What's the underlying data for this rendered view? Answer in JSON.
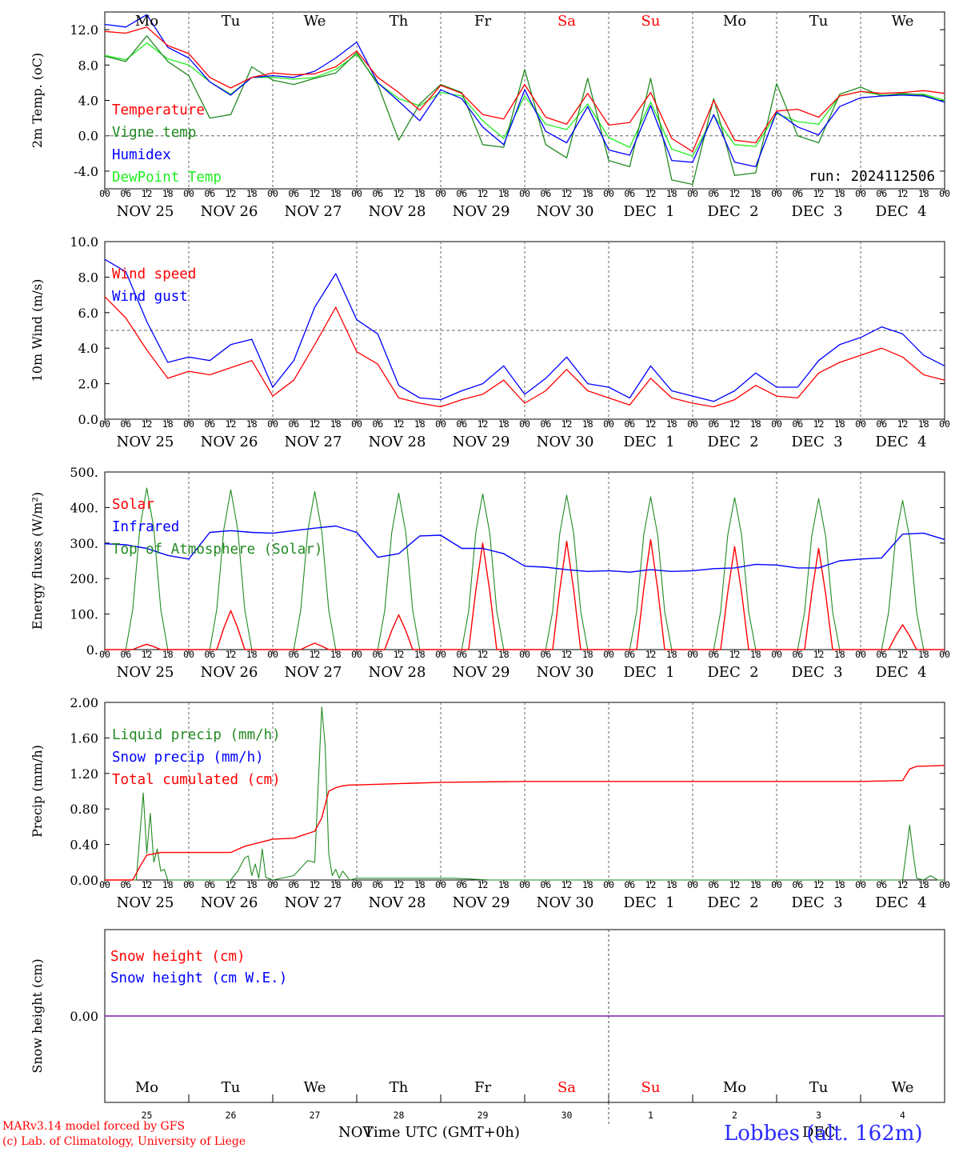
{
  "colors": {
    "red": "#ff0000",
    "green": "#228b22",
    "blue": "#0000ff",
    "lightgreen": "#22ee22",
    "purple": "#7a1fa2",
    "grid": "#666666",
    "dayred": "#ff0000"
  },
  "weekdays": [
    "Mo",
    "Tu",
    "We",
    "Th",
    "Fr",
    "Sa",
    "Su",
    "Mo",
    "Tu",
    "We"
  ],
  "weekday_colors": [
    "black",
    "black",
    "black",
    "black",
    "black",
    "red",
    "red",
    "black",
    "black",
    "black"
  ],
  "date_labels": [
    "NOV 25",
    "NOV 26",
    "NOV 27",
    "NOV 28",
    "NOV 29",
    "NOV 30",
    "DEC  1",
    "DEC  2",
    "DEC  3",
    "DEC  4"
  ],
  "hour_ticks": [
    "00",
    "06",
    "12",
    "18"
  ],
  "bottom_day_numbers": [
    "25",
    "26",
    "27",
    "28",
    "29",
    "30",
    "1",
    "2",
    "3",
    "4"
  ],
  "x_title": "Time UTC (GMT+0h)",
  "month_left": "NOV",
  "month_right": "DEC",
  "footer": {
    "model": "MARv3.14 model forced by GFS",
    "lab": "(c) Lab. of Climatology, University of Liege",
    "station": "Lobbes (alt. 162m)"
  },
  "chart_data": [
    {
      "type": "line",
      "id": "temp",
      "ylabel": "2m Temp. (oC)",
      "yticks": [
        "12.0",
        "8.0",
        "4.0",
        "0.0",
        "-4.0"
      ],
      "ytick_values": [
        12,
        8,
        4,
        0,
        -4
      ],
      "ylim": [
        -6,
        14
      ],
      "ref_line": 0,
      "run_label": "run: 2024112506",
      "legend": [
        {
          "name": "Temperature",
          "color": "red"
        },
        {
          "name": "Vigne temp",
          "color": "green"
        },
        {
          "name": "Humidex",
          "color": "blue"
        },
        {
          "name": "DewPoint Temp",
          "color": "lightgreen"
        }
      ],
      "x_hours": [
        0,
        6,
        12,
        18,
        24,
        30,
        36,
        42,
        48,
        54,
        60,
        66,
        72,
        78,
        84,
        90,
        96,
        102,
        108,
        114,
        120,
        126,
        132,
        138,
        144,
        150,
        156,
        162,
        168,
        174,
        180,
        186,
        192,
        198,
        204,
        210,
        216,
        222,
        228,
        234,
        240
      ],
      "series": [
        {
          "name": "Temperature",
          "color": "red",
          "values": [
            11.8,
            11.6,
            12.3,
            10.2,
            9.3,
            6.6,
            5.4,
            6.6,
            7.1,
            6.9,
            7.0,
            7.8,
            9.6,
            6.6,
            4.9,
            2.9,
            5.7,
            4.8,
            2.4,
            1.9,
            5.8,
            2.1,
            1.3,
            4.8,
            1.2,
            1.5,
            4.9,
            -0.3,
            -1.8,
            4.0,
            -0.5,
            -0.8,
            2.8,
            3.0,
            2.1,
            4.5,
            5.0,
            4.8,
            4.9,
            5.1,
            4.8
          ]
        },
        {
          "name": "Vigne temp",
          "color": "green",
          "values": [
            9.0,
            8.4,
            11.3,
            8.4,
            6.8,
            2.0,
            2.4,
            7.8,
            6.3,
            5.8,
            6.5,
            7.1,
            9.4,
            5.8,
            -0.5,
            3.6,
            5.8,
            4.9,
            -1.0,
            -1.3,
            7.5,
            -1.0,
            -2.5,
            6.5,
            -2.8,
            -3.5,
            6.5,
            -5.0,
            -5.5,
            4.2,
            -4.5,
            -4.2,
            5.9,
            0.0,
            -0.8,
            4.7,
            5.5,
            4.5,
            4.8,
            4.6,
            3.8
          ]
        },
        {
          "name": "Humidex",
          "color": "blue",
          "values": [
            12.6,
            12.3,
            13.7,
            10.0,
            8.8,
            6.1,
            4.6,
            6.6,
            6.8,
            6.6,
            7.3,
            8.8,
            10.6,
            6.0,
            3.9,
            1.7,
            5.2,
            4.2,
            1.0,
            -1.0,
            5.2,
            0.5,
            -0.8,
            3.3,
            -1.6,
            -2.2,
            3.4,
            -2.8,
            -3.0,
            2.4,
            -3.0,
            -3.5,
            2.7,
            1.0,
            0.1,
            3.3,
            4.3,
            4.5,
            4.6,
            4.5,
            3.8
          ]
        },
        {
          "name": "DewPoint Temp",
          "color": "lightgreen",
          "values": [
            9.1,
            8.6,
            10.5,
            8.7,
            8.0,
            6.1,
            4.7,
            6.6,
            6.6,
            6.4,
            6.6,
            7.5,
            9.2,
            6.0,
            4.2,
            3.4,
            4.9,
            4.5,
            1.7,
            -0.3,
            4.5,
            1.3,
            0.7,
            3.6,
            -0.2,
            -1.3,
            3.8,
            -1.5,
            -2.3,
            2.3,
            -1.0,
            -1.2,
            2.5,
            1.6,
            1.3,
            4.5,
            5.0,
            4.6,
            4.7,
            4.7,
            4.0
          ]
        }
      ]
    },
    {
      "type": "line",
      "id": "wind",
      "ylabel": "10m Wind (m/s)",
      "yticks": [
        "10.0",
        "8.0",
        "6.0",
        "4.0",
        "2.0",
        "0.0"
      ],
      "ytick_values": [
        10,
        8,
        6,
        4,
        2,
        0
      ],
      "ylim": [
        0,
        10
      ],
      "ref_line": 5,
      "legend": [
        {
          "name": "Wind speed",
          "color": "red"
        },
        {
          "name": "Wind gust",
          "color": "blue"
        }
      ],
      "x_hours": [
        0,
        6,
        12,
        18,
        24,
        30,
        36,
        42,
        48,
        54,
        60,
        66,
        72,
        78,
        84,
        90,
        96,
        102,
        108,
        114,
        120,
        126,
        132,
        138,
        144,
        150,
        156,
        162,
        168,
        174,
        180,
        186,
        192,
        198,
        204,
        210,
        216,
        222,
        228,
        234,
        240
      ],
      "series": [
        {
          "name": "Wind speed",
          "color": "red",
          "values": [
            6.9,
            5.7,
            3.9,
            2.3,
            2.7,
            2.5,
            2.9,
            3.3,
            1.3,
            2.2,
            4.2,
            6.3,
            3.8,
            3.1,
            1.2,
            0.9,
            0.7,
            1.1,
            1.4,
            2.2,
            0.9,
            1.6,
            2.8,
            1.6,
            1.2,
            0.8,
            2.3,
            1.2,
            0.9,
            0.7,
            1.1,
            1.9,
            1.3,
            1.2,
            2.6,
            3.2,
            3.6,
            4.0,
            3.5,
            2.5,
            2.2
          ]
        },
        {
          "name": "Wind gust",
          "color": "blue",
          "values": [
            9.0,
            8.3,
            5.5,
            3.2,
            3.5,
            3.3,
            4.2,
            4.5,
            1.8,
            3.3,
            6.3,
            8.2,
            5.6,
            4.8,
            1.9,
            1.2,
            1.1,
            1.6,
            2.0,
            3.0,
            1.4,
            2.3,
            3.5,
            2.0,
            1.8,
            1.2,
            3.0,
            1.6,
            1.3,
            1.0,
            1.6,
            2.6,
            1.8,
            1.8,
            3.3,
            4.2,
            4.6,
            5.2,
            4.8,
            3.6,
            3.0
          ]
        }
      ]
    },
    {
      "type": "line",
      "id": "energy",
      "ylabel": "Energy fluxes (W/m²)",
      "yticks": [
        "500.",
        "400.",
        "300.",
        "200.",
        "100.",
        "0."
      ],
      "ytick_values": [
        500,
        400,
        300,
        200,
        100,
        0
      ],
      "ylim": [
        0,
        500
      ],
      "legend": [
        {
          "name": "Solar",
          "color": "red"
        },
        {
          "name": "Infrared",
          "color": "blue"
        },
        {
          "name": "Top of Atmosphere (Solar)",
          "color": "green"
        }
      ],
      "toa_peaks": [
        455,
        450,
        445,
        440,
        438,
        435,
        430,
        428,
        425,
        420
      ],
      "solar_peaks": [
        15,
        110,
        18,
        98,
        300,
        305,
        310,
        290,
        285,
        70
      ],
      "infrared": {
        "x_hours": [
          0,
          6,
          12,
          18,
          24,
          30,
          36,
          42,
          48,
          54,
          60,
          66,
          72,
          78,
          84,
          90,
          96,
          102,
          108,
          114,
          120,
          126,
          132,
          138,
          144,
          150,
          156,
          162,
          168,
          174,
          180,
          186,
          192,
          198,
          204,
          210,
          216,
          222,
          228,
          234,
          240
        ],
        "values": [
          298,
          295,
          285,
          265,
          255,
          330,
          335,
          330,
          328,
          335,
          342,
          348,
          330,
          260,
          270,
          320,
          322,
          285,
          285,
          270,
          235,
          232,
          225,
          220,
          222,
          218,
          225,
          220,
          222,
          228,
          230,
          240,
          238,
          230,
          230,
          250,
          255,
          258,
          325,
          328,
          310
        ]
      }
    },
    {
      "type": "line",
      "id": "precip",
      "ylabel": "Precip (mm/h)",
      "yticks": [
        "2.00",
        "1.60",
        "1.20",
        "0.80",
        "0.40",
        "0.00"
      ],
      "ytick_values": [
        2,
        1.6,
        1.2,
        0.8,
        0.4,
        0
      ],
      "ylim": [
        0,
        2
      ],
      "legend": [
        {
          "name": "Liquid precip (mm/h)",
          "color": "green"
        },
        {
          "name": "Snow precip (mm/h)",
          "color": "blue"
        },
        {
          "name": "Total cumulated (cm)",
          "color": "red"
        }
      ],
      "cumulated": {
        "x_hours": [
          0,
          8,
          10,
          12,
          16,
          24,
          30,
          36,
          40,
          44,
          48,
          54,
          60,
          62,
          64,
          66,
          68,
          70,
          72,
          80,
          96,
          120,
          144,
          168,
          192,
          216,
          228,
          230,
          232,
          240
        ],
        "values": [
          0,
          0,
          0.15,
          0.28,
          0.31,
          0.31,
          0.31,
          0.31,
          0.38,
          0.42,
          0.46,
          0.47,
          0.55,
          0.7,
          1.0,
          1.04,
          1.06,
          1.07,
          1.07,
          1.08,
          1.1,
          1.11,
          1.11,
          1.11,
          1.11,
          1.11,
          1.12,
          1.25,
          1.28,
          1.29
        ]
      },
      "liquid": {
        "x_hours": [
          0,
          9,
          11,
          12,
          13,
          14,
          15,
          16,
          17,
          18,
          20,
          36,
          38,
          40,
          41,
          42,
          43,
          44,
          45,
          46,
          48,
          54,
          58,
          60,
          62,
          63,
          64,
          65,
          66,
          67,
          68,
          70,
          72,
          80,
          100,
          110,
          228,
          229,
          230,
          231,
          232,
          234,
          236,
          238,
          240
        ],
        "values": [
          0,
          0,
          0.98,
          0.3,
          0.75,
          0.2,
          0.35,
          0.1,
          0.12,
          0,
          0,
          0,
          0.1,
          0.25,
          0.27,
          0.05,
          0.18,
          0.02,
          0.35,
          0.03,
          0,
          0.05,
          0.22,
          0.2,
          1.95,
          1.5,
          0.3,
          0.05,
          0.12,
          0.02,
          0.1,
          0,
          0.02,
          0.02,
          0.02,
          0,
          0,
          0.3,
          0.62,
          0.3,
          0.02,
          0,
          0.05,
          0,
          0
        ]
      }
    },
    {
      "type": "line",
      "id": "snow",
      "ylabel": "Snow height (cm)",
      "yticks": [
        "0.00"
      ],
      "ytick_values": [
        0
      ],
      "ylim": [
        -1,
        1
      ],
      "legend": [
        {
          "name": "Snow height (cm)",
          "color": "red"
        },
        {
          "name": "Snow height (cm W.E.)",
          "color": "blue"
        }
      ],
      "series": [
        {
          "name": "Snow height (cm)",
          "color": "purple",
          "values": [
            0,
            0
          ]
        }
      ]
    }
  ]
}
